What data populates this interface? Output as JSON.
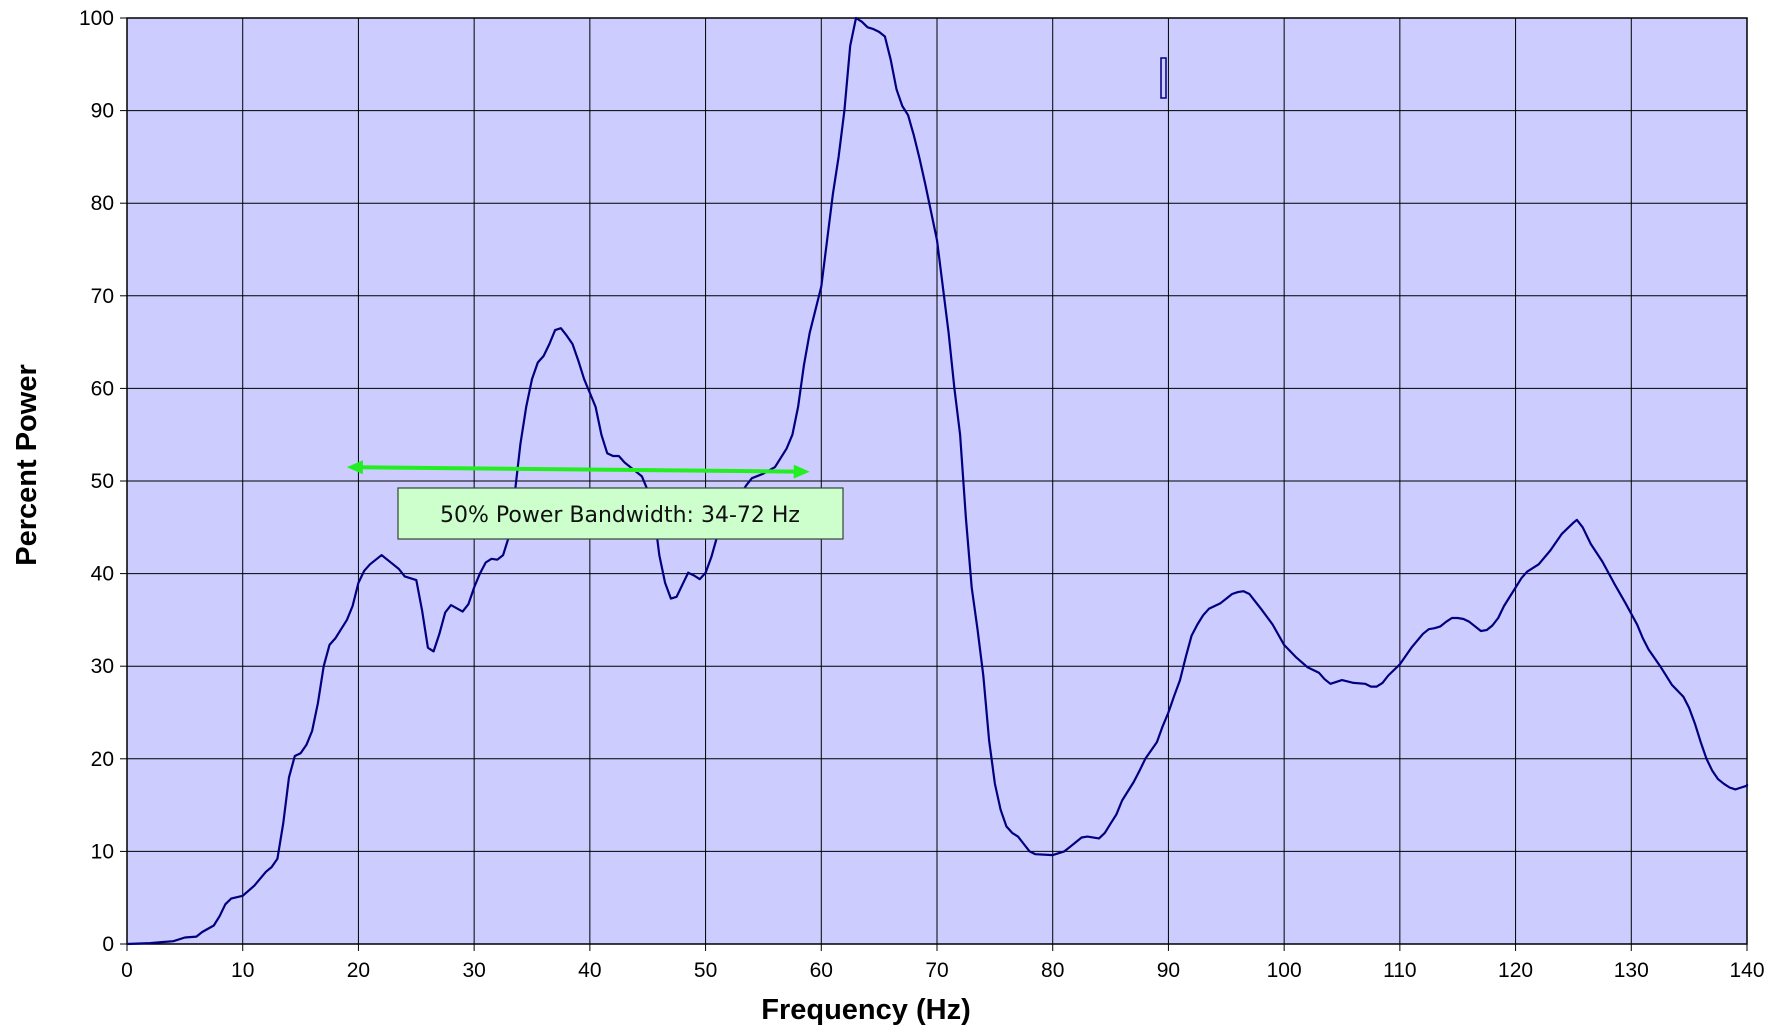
{
  "chart_data": {
    "type": "line",
    "title": "",
    "xlabel": "Frequency (Hz)",
    "ylabel": "Percent Power",
    "xlim": [
      0,
      140
    ],
    "ylim": [
      0,
      100
    ],
    "x_ticks": [
      0,
      10,
      20,
      30,
      40,
      50,
      60,
      70,
      80,
      90,
      100,
      110,
      120,
      130,
      140
    ],
    "y_ticks": [
      0,
      10,
      20,
      30,
      40,
      50,
      60,
      70,
      80,
      90,
      100
    ],
    "grid": true,
    "legend": "none",
    "colors": {
      "plot_background": "#ccccff",
      "line": "#000080",
      "grid": "#000000",
      "annotation_arrow": "#22ee22",
      "annotation_box": "#ccffcc"
    },
    "series": [
      {
        "points": [
          [
            0,
            0
          ],
          [
            2,
            0.1
          ],
          [
            3,
            0.2
          ],
          [
            4,
            0.3
          ],
          [
            5,
            0.7
          ],
          [
            6,
            0.8
          ],
          [
            6.5,
            1.3
          ],
          [
            7.5,
            2
          ],
          [
            8,
            3
          ],
          [
            8.5,
            4.3
          ],
          [
            9,
            4.9
          ],
          [
            10,
            5.2
          ],
          [
            11,
            6.3
          ],
          [
            12,
            7.8
          ],
          [
            12.5,
            8.3
          ],
          [
            13,
            9.2
          ],
          [
            13.5,
            13
          ],
          [
            14,
            18
          ],
          [
            14.5,
            20.3
          ],
          [
            15,
            20.6
          ],
          [
            15.5,
            21.5
          ],
          [
            16,
            23
          ],
          [
            16.5,
            26
          ],
          [
            17,
            30
          ],
          [
            17.5,
            32.3
          ],
          [
            18,
            33
          ],
          [
            18.5,
            34
          ],
          [
            19,
            35
          ],
          [
            19.5,
            36.5
          ],
          [
            20,
            39
          ],
          [
            20.5,
            40.3
          ],
          [
            21,
            41
          ],
          [
            21.5,
            41.5
          ],
          [
            22,
            42
          ],
          [
            23,
            41
          ],
          [
            23.5,
            40.5
          ],
          [
            24,
            39.7
          ],
          [
            25,
            39.3
          ],
          [
            25.5,
            36
          ],
          [
            26,
            32
          ],
          [
            26.5,
            31.6
          ],
          [
            27,
            33.5
          ],
          [
            27.5,
            35.8
          ],
          [
            28,
            36.6
          ],
          [
            29,
            35.9
          ],
          [
            29.5,
            36.7
          ],
          [
            30,
            38.5
          ],
          [
            30.5,
            40
          ],
          [
            31,
            41.2
          ],
          [
            31.5,
            41.6
          ],
          [
            32,
            41.5
          ],
          [
            32.5,
            42
          ],
          [
            33,
            44
          ],
          [
            33.5,
            48.5
          ],
          [
            34,
            54
          ],
          [
            34.5,
            58
          ],
          [
            35,
            61
          ],
          [
            35.5,
            62.8
          ],
          [
            36,
            63.5
          ],
          [
            36.5,
            64.8
          ],
          [
            37,
            66.3
          ],
          [
            37.5,
            66.5
          ],
          [
            38,
            65.7
          ],
          [
            38.5,
            64.8
          ],
          [
            39,
            63
          ],
          [
            39.5,
            61
          ],
          [
            40,
            59.5
          ],
          [
            40.5,
            58
          ],
          [
            41,
            55
          ],
          [
            41.5,
            53
          ],
          [
            42,
            52.7
          ],
          [
            42.5,
            52.7
          ],
          [
            43,
            52
          ],
          [
            44,
            51
          ],
          [
            44.5,
            50.5
          ],
          [
            45,
            49
          ],
          [
            45.5,
            47
          ],
          [
            46,
            42
          ],
          [
            46.5,
            39
          ],
          [
            47,
            37.3
          ],
          [
            47.5,
            37.5
          ],
          [
            48,
            38.8
          ],
          [
            48.5,
            40.1
          ],
          [
            49,
            39.8
          ],
          [
            49.5,
            39.4
          ],
          [
            50,
            40.1
          ],
          [
            50.5,
            41.8
          ],
          [
            51,
            44
          ],
          [
            51.5,
            45.8
          ],
          [
            52,
            46.8
          ],
          [
            52.5,
            47.5
          ],
          [
            53,
            48.5
          ],
          [
            53.5,
            49.5
          ],
          [
            54,
            50.3
          ],
          [
            55,
            50.8
          ],
          [
            56,
            51.5
          ],
          [
            56.5,
            52.5
          ],
          [
            57,
            53.5
          ],
          [
            57.5,
            55
          ],
          [
            58,
            58
          ],
          [
            58.5,
            62.5
          ],
          [
            59,
            66
          ],
          [
            59.5,
            68.5
          ],
          [
            60,
            71
          ],
          [
            60.5,
            76
          ],
          [
            61,
            81
          ],
          [
            61.5,
            85
          ],
          [
            62,
            90
          ],
          [
            62.5,
            97
          ],
          [
            63,
            100
          ],
          [
            63.5,
            99.6
          ],
          [
            64,
            99
          ],
          [
            64.5,
            98.8
          ],
          [
            65,
            98.5
          ],
          [
            65.5,
            98
          ],
          [
            66,
            95.5
          ],
          [
            66.5,
            92.3
          ],
          [
            67,
            90.5
          ],
          [
            67.5,
            89.5
          ],
          [
            68,
            87.3
          ],
          [
            68.5,
            84.8
          ],
          [
            69,
            82
          ],
          [
            69.5,
            79
          ],
          [
            70,
            76
          ],
          [
            70.5,
            71
          ],
          [
            71,
            66
          ],
          [
            71.5,
            60
          ],
          [
            72,
            55
          ],
          [
            72.5,
            46
          ],
          [
            73,
            38.5
          ],
          [
            73.5,
            34
          ],
          [
            74,
            29
          ],
          [
            74.5,
            22
          ],
          [
            75,
            17.3
          ],
          [
            75.5,
            14.5
          ],
          [
            76,
            12.7
          ],
          [
            76.5,
            12
          ],
          [
            77,
            11.6
          ],
          [
            77.5,
            10.8
          ],
          [
            78,
            10
          ],
          [
            78.5,
            9.7
          ],
          [
            80,
            9.6
          ],
          [
            81,
            10
          ],
          [
            81.5,
            10.5
          ],
          [
            82,
            11
          ],
          [
            82.5,
            11.5
          ],
          [
            83,
            11.6
          ],
          [
            84,
            11.4
          ],
          [
            84.5,
            12
          ],
          [
            85,
            13
          ],
          [
            85.5,
            14
          ],
          [
            86,
            15.5
          ],
          [
            87,
            17.5
          ],
          [
            87.5,
            18.7
          ],
          [
            88,
            20
          ],
          [
            89,
            21.8
          ],
          [
            89.5,
            23.5
          ],
          [
            90,
            25
          ],
          [
            90.5,
            26.8
          ],
          [
            91,
            28.5
          ],
          [
            91.5,
            31
          ],
          [
            92,
            33.3
          ],
          [
            92.5,
            34.5
          ],
          [
            93,
            35.5
          ],
          [
            93.5,
            36.2
          ],
          [
            94,
            36.5
          ],
          [
            94.5,
            36.8
          ],
          [
            95,
            37.3
          ],
          [
            95.5,
            37.8
          ],
          [
            96,
            38
          ],
          [
            96.5,
            38.1
          ],
          [
            97,
            37.8
          ],
          [
            97.5,
            37
          ],
          [
            98,
            36.2
          ],
          [
            99,
            34.5
          ],
          [
            100,
            32.3
          ],
          [
            101,
            31
          ],
          [
            102,
            29.9
          ],
          [
            103,
            29.3
          ],
          [
            103.5,
            28.6
          ],
          [
            104,
            28.1
          ],
          [
            105,
            28.5
          ],
          [
            106,
            28.2
          ],
          [
            107,
            28.1
          ],
          [
            107.5,
            27.8
          ],
          [
            108,
            27.8
          ],
          [
            108.5,
            28.2
          ],
          [
            109,
            29
          ],
          [
            110,
            30.2
          ],
          [
            111,
            32
          ],
          [
            112,
            33.5
          ],
          [
            112.5,
            34
          ],
          [
            113,
            34.1
          ],
          [
            113.5,
            34.3
          ],
          [
            114,
            34.8
          ],
          [
            114.5,
            35.2
          ],
          [
            115,
            35.2
          ],
          [
            115.5,
            35.1
          ],
          [
            116,
            34.8
          ],
          [
            117,
            33.8
          ],
          [
            117.5,
            33.9
          ],
          [
            118,
            34.4
          ],
          [
            118.5,
            35.2
          ],
          [
            119,
            36.5
          ],
          [
            120,
            38.5
          ],
          [
            120.5,
            39.5
          ],
          [
            121,
            40.2
          ],
          [
            122,
            41
          ],
          [
            123,
            42.5
          ],
          [
            124,
            44.3
          ],
          [
            125,
            45.5
          ],
          [
            125.3,
            45.8
          ],
          [
            125.8,
            45
          ],
          [
            126.5,
            43.2
          ],
          [
            127.5,
            41.3
          ],
          [
            128.5,
            39
          ],
          [
            129.5,
            36.8
          ],
          [
            130.5,
            34.5
          ],
          [
            131,
            33
          ],
          [
            131.5,
            31.8
          ],
          [
            132.5,
            30
          ],
          [
            133.5,
            28
          ],
          [
            134.5,
            26.7
          ],
          [
            135,
            25.5
          ],
          [
            135.5,
            23.8
          ],
          [
            136,
            21.8
          ],
          [
            136.5,
            20
          ],
          [
            137,
            18.7
          ],
          [
            137.5,
            17.8
          ],
          [
            138,
            17.3
          ],
          [
            138.5,
            16.9
          ],
          [
            139,
            16.7
          ],
          [
            139.5,
            16.9
          ],
          [
            140,
            17.1
          ],
          [
            140.5,
            17.2
          ],
          [
            141,
            17.1
          ]
        ]
      }
    ],
    "annotations": [
      {
        "type": "double-arrow",
        "from": [
          19,
          51.5
        ],
        "to": [
          59,
          51
        ],
        "color": "#22ee22"
      },
      {
        "type": "text-box",
        "text": "50% Power Bandwidth: 34-72 Hz"
      }
    ]
  }
}
